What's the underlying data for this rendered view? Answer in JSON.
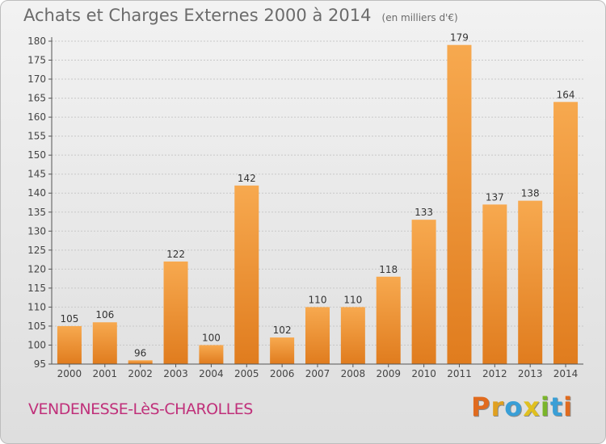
{
  "title": "Achats et Charges Externes 2000 à 2014",
  "unit_note": "(en milliers d'€)",
  "commune": "VENDENESSE-LèS-CHAROLLES",
  "brand": "Proxiti",
  "colors": {
    "bar_light": "#f7a94f",
    "bar_dark": "#e07c1e",
    "commune_text": "#c0307a",
    "title_text": "#6b6b6b",
    "brand_letters": [
      "#e06b1f",
      "#e0a020",
      "#3a9fd6",
      "#e0c020",
      "#7ab52a",
      "#3a9fd6",
      "#e06b1f"
    ]
  },
  "chart_data": {
    "type": "bar",
    "categories": [
      "2000",
      "2001",
      "2002",
      "2003",
      "2004",
      "2005",
      "2006",
      "2007",
      "2008",
      "2009",
      "2010",
      "2011",
      "2012",
      "2013",
      "2014"
    ],
    "values": [
      105,
      106,
      96,
      122,
      100,
      142,
      102,
      110,
      110,
      118,
      133,
      179,
      137,
      138,
      164
    ],
    "ylim": [
      95,
      180
    ],
    "yticks": [
      95,
      100,
      105,
      110,
      115,
      120,
      125,
      130,
      135,
      140,
      145,
      150,
      155,
      160,
      165,
      170,
      175,
      180
    ],
    "grid": true,
    "legend": "none"
  }
}
